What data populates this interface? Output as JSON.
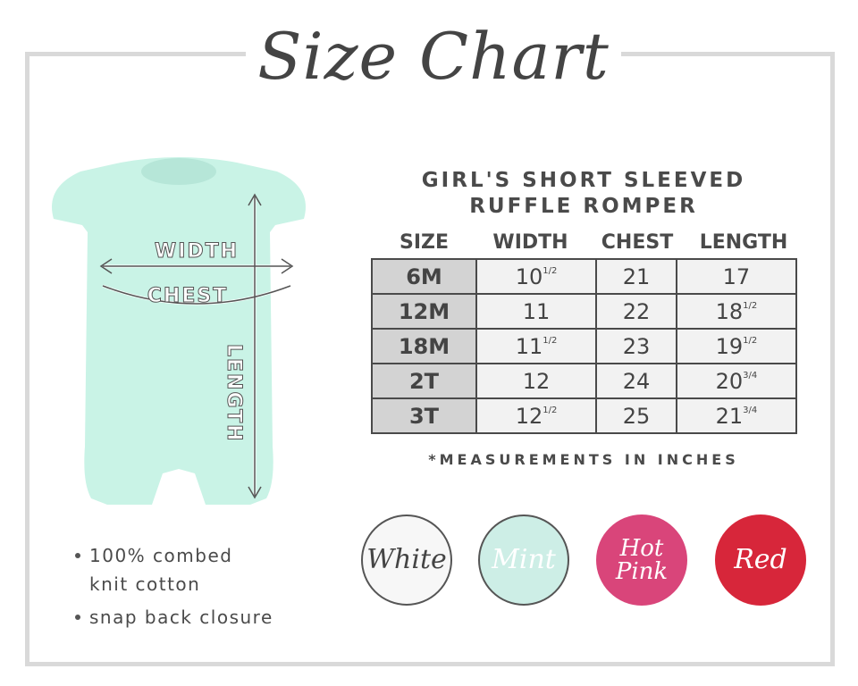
{
  "title": "Size Chart",
  "diagram_labels": {
    "width": "WIDTH",
    "chest": "CHEST",
    "length": "LENGTH"
  },
  "product_title": [
    "GIRL'S SHORT SLEEVED",
    "RUFFLE ROMPER"
  ],
  "table": {
    "headers": [
      "SIZE",
      "WIDTH",
      "CHEST",
      "LENGTH"
    ],
    "rows": [
      {
        "size": "6M",
        "width": "10",
        "width_frac": "1/2",
        "chest": "21",
        "length": "17",
        "length_frac": ""
      },
      {
        "size": "12M",
        "width": "11",
        "width_frac": "",
        "chest": "22",
        "length": "18",
        "length_frac": "1/2"
      },
      {
        "size": "18M",
        "width": "11",
        "width_frac": "1/2",
        "chest": "23",
        "length": "19",
        "length_frac": "1/2"
      },
      {
        "size": "2T",
        "width": "12",
        "width_frac": "",
        "chest": "24",
        "length": "20",
        "length_frac": "3/4"
      },
      {
        "size": "3T",
        "width": "12",
        "width_frac": "1/2",
        "chest": "25",
        "length": "21",
        "length_frac": "3/4"
      }
    ]
  },
  "note": "*MEASUREMENTS IN INCHES",
  "colors": [
    {
      "name": "White",
      "hex": "#f7f7f7",
      "text": "#444444"
    },
    {
      "name": "Mint",
      "hex": "#cdeee6",
      "text": "#ffffff"
    },
    {
      "name": "Hot Pink",
      "hex": "#d9457a",
      "text": "#ffffff"
    },
    {
      "name": "Red",
      "hex": "#d7263a",
      "text": "#ffffff"
    }
  ],
  "features": [
    "100% combed",
    "knit cotton",
    "snap back closure"
  ],
  "garment_color": "#c9f3e6"
}
